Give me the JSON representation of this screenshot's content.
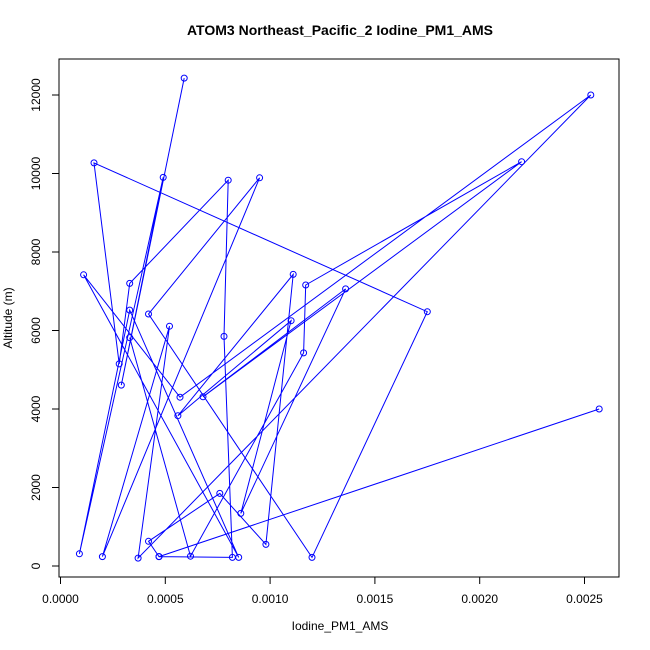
{
  "chart_data": {
    "type": "line",
    "title": "ATOM3 Northeast_Pacific_2 Iodine_PM1_AMS",
    "xlabel": "Iodine_PM1_AMS",
    "ylabel": "Altitude (m)",
    "xlim": [
      0,
      0.0026
    ],
    "ylim": [
      0,
      12500
    ],
    "xticks": [
      0,
      0.0005,
      0.001,
      0.0015,
      0.002,
      0.0025
    ],
    "xtick_labels": [
      "0.0000",
      "0.0005",
      "0.0010",
      "0.0015",
      "0.0020",
      "0.0025"
    ],
    "yticks": [
      0,
      2000,
      4000,
      6000,
      8000,
      10000,
      12000
    ],
    "ytick_labels": [
      "0",
      "2000",
      "4000",
      "6000",
      "8000",
      "10000",
      "12000"
    ],
    "grid": false,
    "markers": "open-circle",
    "color": "#0000ff",
    "series": [
      {
        "points": [
          {
            "x": 0.00059,
            "y": 12430
          },
          {
            "x": 0.00029,
            "y": 4610
          },
          {
            "x": 0.00049,
            "y": 9900
          },
          {
            "x": 9e-05,
            "y": 310
          },
          {
            "x": 0.00033,
            "y": 6520
          },
          {
            "x": 0.00085,
            "y": 220
          },
          {
            "x": 0.00011,
            "y": 7420
          },
          {
            "x": 0.00057,
            "y": 4300
          },
          {
            "x": 0.00253,
            "y": 12000
          },
          {
            "x": 0.00037,
            "y": 200
          },
          {
            "x": 0.00052,
            "y": 6110
          },
          {
            "x": 0.0002,
            "y": 240
          },
          {
            "x": 0.00095,
            "y": 9890
          },
          {
            "x": 0.00042,
            "y": 6420
          },
          {
            "x": 0.0012,
            "y": 220
          },
          {
            "x": 0.00175,
            "y": 6480
          },
          {
            "x": 0.00016,
            "y": 10270
          },
          {
            "x": 0.00028,
            "y": 5150
          },
          {
            "x": 0.00033,
            "y": 7200
          },
          {
            "x": 0.0008,
            "y": 9830
          },
          {
            "x": 0.00078,
            "y": 5850
          },
          {
            "x": 0.00082,
            "y": 220
          },
          {
            "x": 0.00047,
            "y": 240
          },
          {
            "x": 0.00257,
            "y": 4000
          },
          {
            "x": 0.00047,
            "y": 240
          },
          {
            "x": 0.00042,
            "y": 630
          },
          {
            "x": 0.00076,
            "y": 1850
          },
          {
            "x": 0.00098,
            "y": 550
          },
          {
            "x": 0.00111,
            "y": 7430
          },
          {
            "x": 0.00056,
            "y": 3830
          },
          {
            "x": 0.0011,
            "y": 6250
          },
          {
            "x": 0.00086,
            "y": 1340
          },
          {
            "x": 0.00136,
            "y": 7060
          },
          {
            "x": 0.00068,
            "y": 4310
          },
          {
            "x": 0.0022,
            "y": 10300
          },
          {
            "x": 0.00117,
            "y": 7160
          },
          {
            "x": 0.00116,
            "y": 5430
          },
          {
            "x": 0.00062,
            "y": 250
          },
          {
            "x": 0.00033,
            "y": 5820
          }
        ]
      }
    ]
  }
}
